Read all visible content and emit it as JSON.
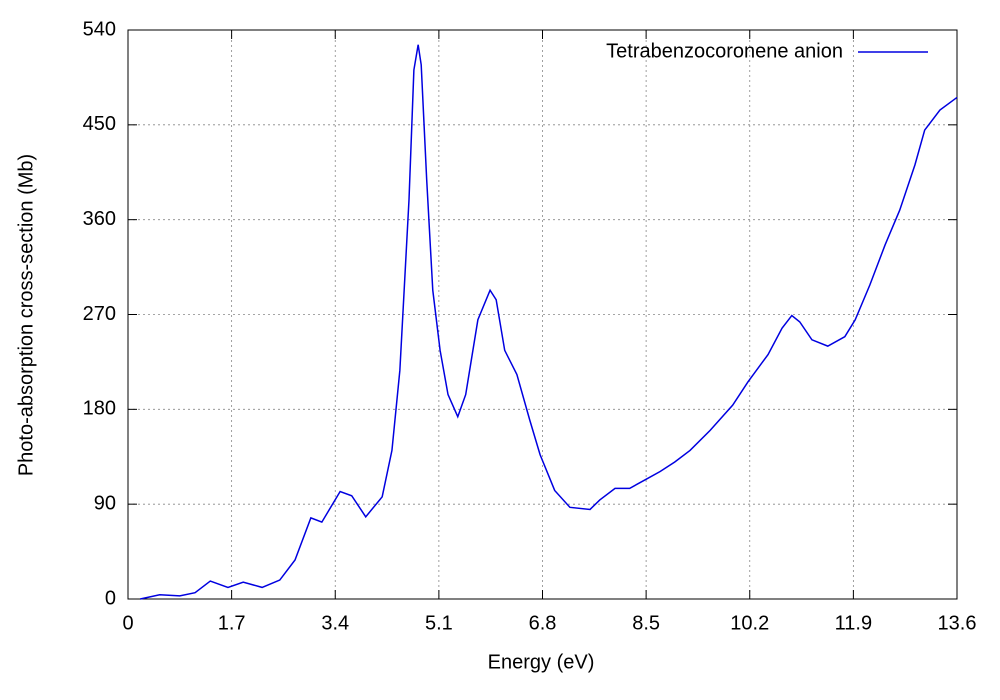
{
  "chart_data": {
    "type": "line",
    "xlabel": "Energy (eV)",
    "ylabel": "Photo-absorption cross-section (Mb)",
    "xlim": [
      0,
      13.6
    ],
    "ylim": [
      0,
      540
    ],
    "xticks": [
      0,
      1.7,
      3.4,
      5.1,
      6.8,
      8.5,
      10.2,
      11.9,
      13.6
    ],
    "yticks": [
      0,
      90,
      180,
      270,
      360,
      450,
      540
    ],
    "grid": true,
    "legend": "upper right",
    "series": [
      {
        "name": "Tetrabenzocoronene anion",
        "color": "#0000e0",
        "x": [
          0.2,
          0.52,
          0.85,
          1.1,
          1.35,
          1.64,
          1.89,
          2.2,
          2.49,
          2.74,
          3.0,
          3.18,
          3.48,
          3.67,
          3.9,
          4.17,
          4.33,
          4.46,
          4.61,
          4.69,
          4.76,
          4.81,
          4.9,
          5.0,
          5.12,
          5.25,
          5.41,
          5.54,
          5.74,
          5.94,
          6.04,
          6.18,
          6.38,
          6.59,
          6.76,
          7.0,
          7.25,
          7.58,
          7.74,
          7.99,
          8.23,
          8.48,
          8.73,
          8.97,
          9.22,
          9.55,
          9.92,
          10.17,
          10.5,
          10.73,
          10.89,
          11.02,
          11.22,
          11.48,
          11.76,
          11.93,
          12.17,
          12.42,
          12.66,
          12.91,
          13.07,
          13.32,
          13.6
        ],
        "values": [
          0,
          4,
          3,
          6,
          17,
          11,
          16,
          11,
          18,
          37,
          77,
          73,
          102,
          98,
          78,
          97,
          141,
          217,
          379,
          502,
          526,
          507,
          398,
          293,
          236,
          194,
          173,
          194,
          265,
          293,
          284,
          236,
          213,
          170,
          137,
          103,
          87,
          85,
          94,
          105,
          105,
          113,
          121,
          130,
          141,
          160,
          184,
          206,
          232,
          257,
          269,
          263,
          246,
          240,
          249,
          265,
          298,
          336,
          369,
          412,
          445,
          464,
          476
        ]
      }
    ]
  }
}
